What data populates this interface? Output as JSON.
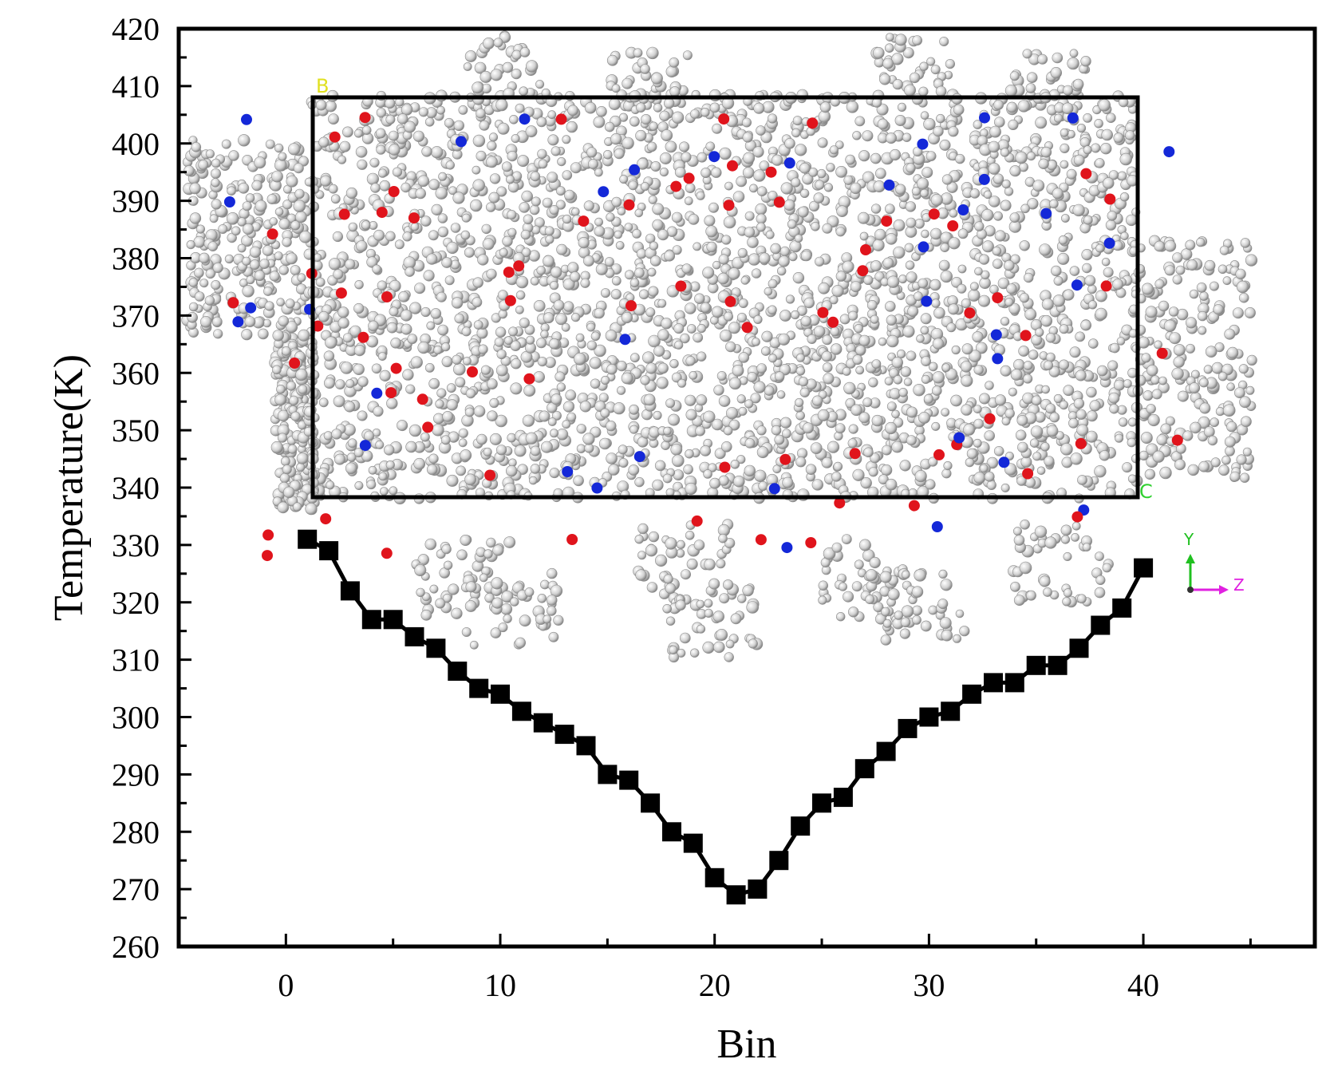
{
  "chart_data": {
    "type": "line",
    "xlabel": "Bin",
    "ylabel": "Temperature(K)",
    "xlim": [
      -5,
      48
    ],
    "ylim": [
      260,
      420
    ],
    "x_ticks": [
      0,
      10,
      20,
      30,
      40
    ],
    "y_ticks": [
      260,
      270,
      280,
      290,
      300,
      310,
      320,
      330,
      340,
      350,
      360,
      370,
      380,
      390,
      400,
      410,
      420
    ],
    "grid": false,
    "marker": "square",
    "line_color": "#000000",
    "series": [
      {
        "x": [
          1,
          2,
          3,
          4,
          5,
          6,
          7,
          8,
          9,
          10,
          11,
          12,
          13,
          14,
          15,
          16,
          17,
          18,
          19,
          20,
          21,
          22,
          23,
          24,
          25,
          26,
          27,
          28,
          29,
          30,
          31,
          32,
          33,
          34,
          35,
          36,
          37,
          38,
          39,
          40
        ],
        "values": [
          331,
          329,
          322,
          317,
          317,
          314,
          312,
          308,
          305,
          304,
          301,
          299,
          297,
          295,
          290,
          289,
          285,
          280,
          278,
          272,
          269,
          270,
          275,
          281,
          285,
          286,
          291,
          294,
          298,
          300,
          301,
          304,
          306,
          306,
          309,
          309,
          312,
          316,
          319,
          326
        ]
      }
    ]
  },
  "inset": {
    "description_colors": {
      "carbon": "#d6d6d6",
      "oxygen": "#e0141c",
      "nitrogen": "#1428d8"
    },
    "cell_labels": {
      "top_left": "B",
      "bottom_right": "C"
    },
    "axes_triad": {
      "y": "Y",
      "z": "Z",
      "y_color": "#20c020",
      "z_color": "#e020e0"
    }
  }
}
